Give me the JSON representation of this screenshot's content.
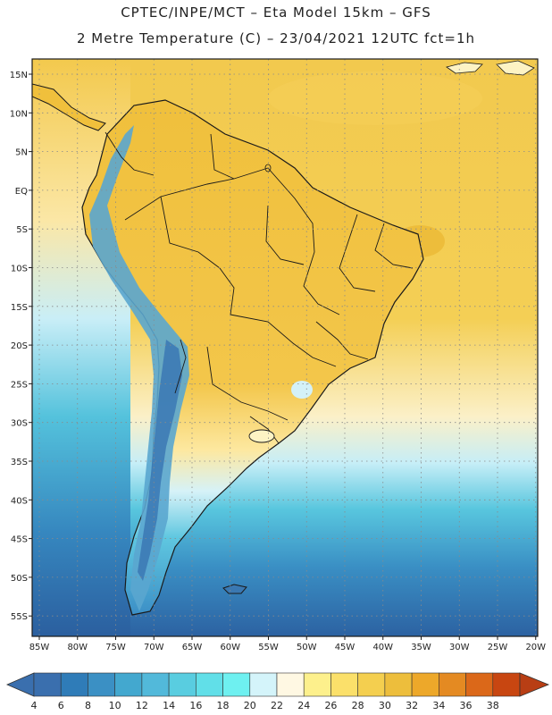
{
  "header": {
    "line1": "CPTEC/INPE/MCT –  Eta Model 15km – GFS",
    "line2": "2 Metre Temperature (C) – 23/04/2021 12UTC fct=1h"
  },
  "axes": {
    "lat_labels": [
      "15N",
      "10N",
      "5N",
      "EQ",
      "5S",
      "10S",
      "15S",
      "20S",
      "25S",
      "30S",
      "35S",
      "40S",
      "45S",
      "50S",
      "55S"
    ],
    "lon_labels": [
      "85W",
      "80W",
      "75W",
      "70W",
      "65W",
      "60W",
      "55W",
      "50W",
      "45W",
      "40W",
      "35W",
      "30W",
      "25W",
      "20W"
    ]
  },
  "colorbar": {
    "labels": [
      "4",
      "6",
      "8",
      "10",
      "12",
      "14",
      "16",
      "18",
      "20",
      "22",
      "24",
      "26",
      "28",
      "30",
      "32",
      "34",
      "36",
      "38"
    ],
    "colors": [
      "#3a6fae",
      "#2f7cb8",
      "#3b90c4",
      "#43a8cf",
      "#52b9da",
      "#59cde0",
      "#61dfe8",
      "#6ef0f0",
      "#d4f4fa",
      "#fff8e3",
      "#fdf08c",
      "#fbe06a",
      "#f4cf4f",
      "#edbe3c",
      "#eda82a",
      "#e48a22",
      "#db6819",
      "#c84611",
      "#b83e14"
    ]
  },
  "map": {
    "ocean_warm": "#f2c94e",
    "ocean_cool": "#45b4d6",
    "land": "#f0c342",
    "andes": "#5faad0"
  }
}
